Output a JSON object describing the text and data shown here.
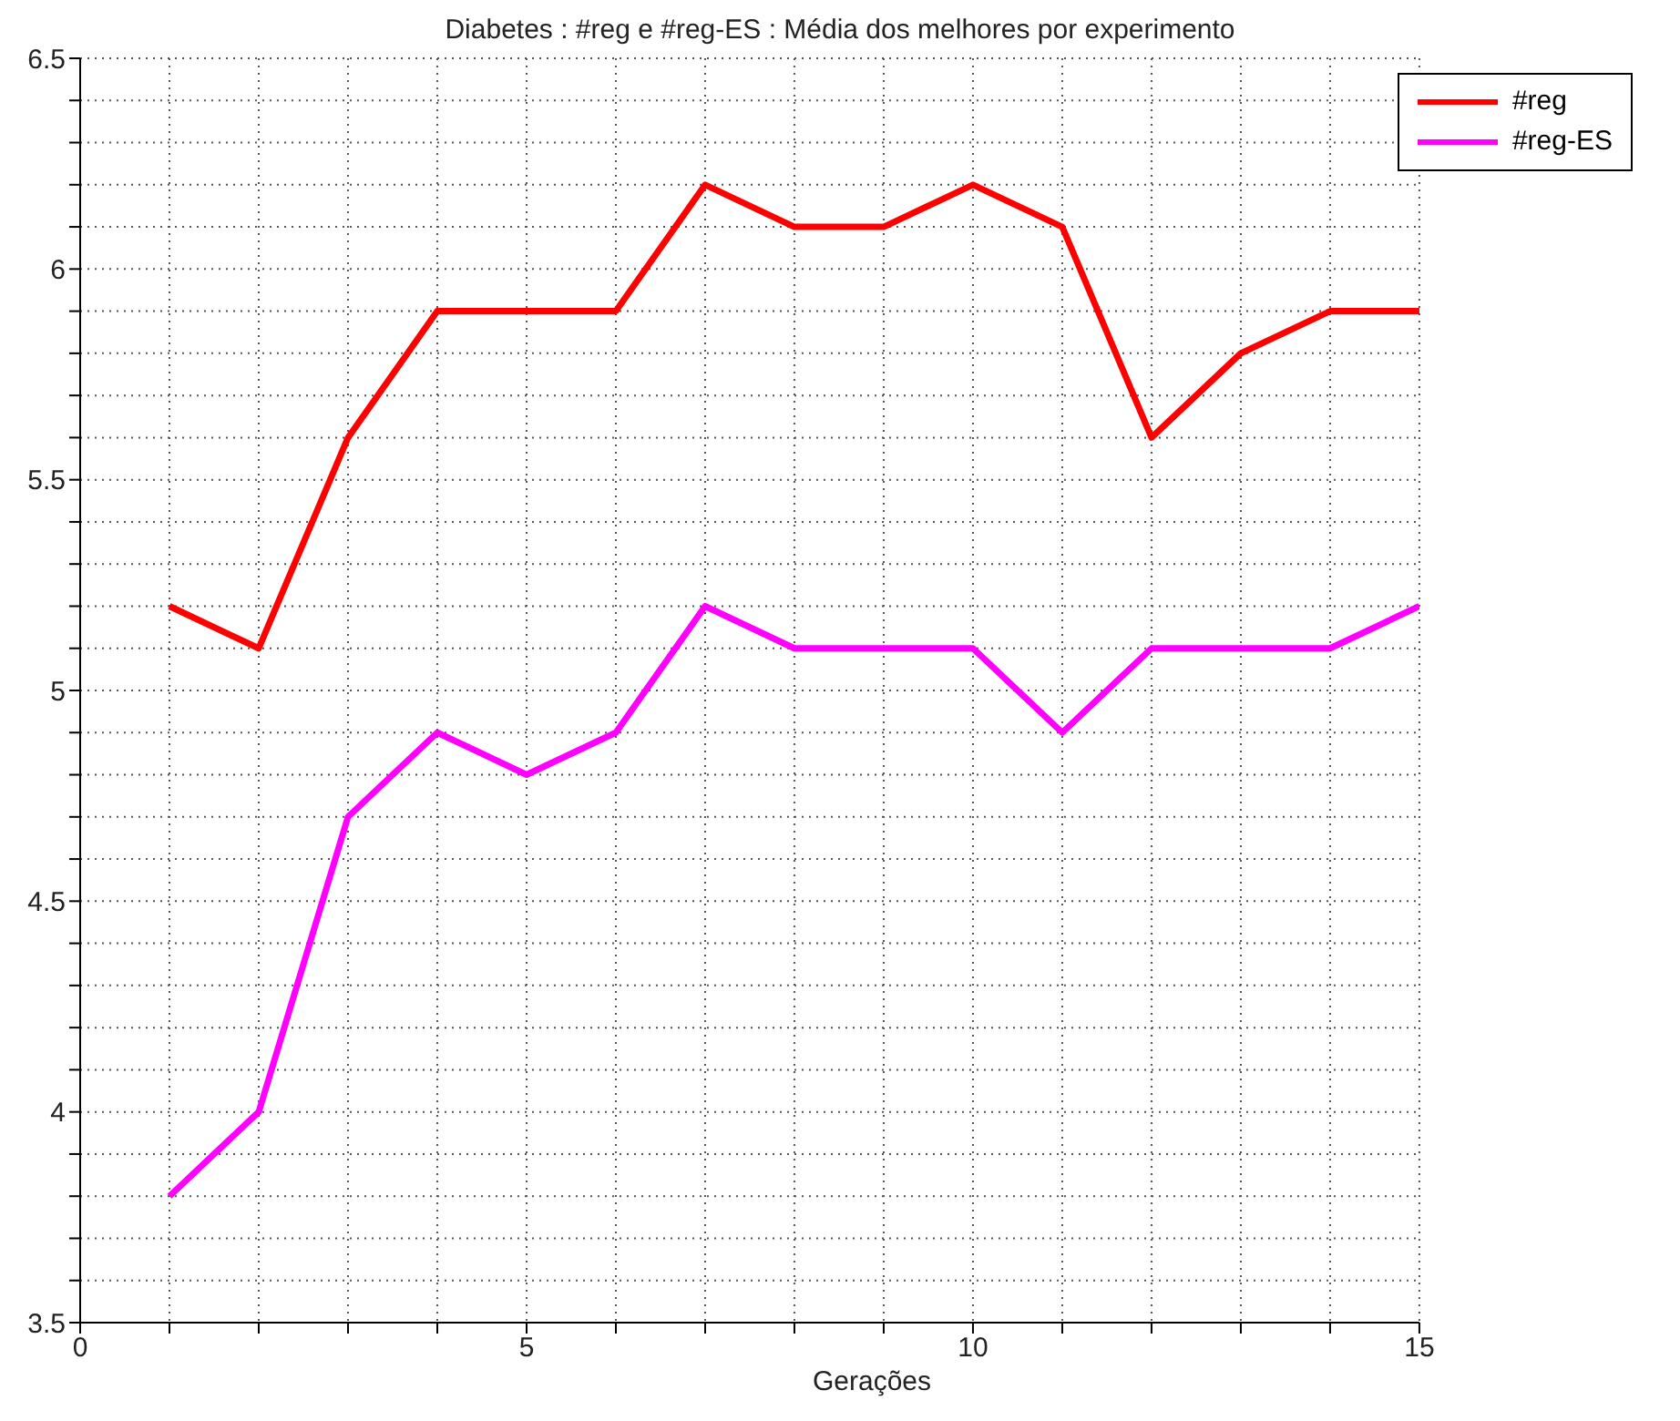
{
  "chart_data": {
    "type": "line",
    "title": "Diabetes : #reg e #reg-ES : Média dos melhores por experimento",
    "xlabel": "Gerações",
    "x": [
      1,
      2,
      3,
      4,
      5,
      6,
      7,
      8,
      9,
      10,
      11,
      12,
      13,
      14,
      15
    ],
    "series": [
      {
        "name": "#reg",
        "color": "#ff0000",
        "values": [
          5.2,
          5.1,
          5.6,
          5.9,
          5.9,
          5.9,
          6.2,
          6.1,
          6.1,
          6.2,
          6.1,
          5.6,
          5.8,
          5.9,
          5.9
        ]
      },
      {
        "name": "#reg-ES",
        "color": "#ff00ff",
        "values": [
          3.8,
          4.0,
          4.7,
          4.9,
          4.8,
          4.9,
          5.2,
          5.1,
          5.1,
          5.1,
          4.9,
          5.1,
          5.1,
          5.1,
          5.2
        ]
      }
    ],
    "xlim": [
      0,
      15
    ],
    "xticks": [
      0,
      {
        "value": 1,
        "label": null
      },
      {
        "value": 2,
        "label": null
      },
      {
        "value": 3,
        "label": null
      },
      {
        "value": 4,
        "label": null
      },
      5,
      {
        "value": 6,
        "label": null
      },
      {
        "value": 7,
        "label": null
      },
      {
        "value": 8,
        "label": null
      },
      {
        "value": 9,
        "label": null
      },
      10,
      {
        "value": 11,
        "label": null
      },
      {
        "value": 12,
        "label": null
      },
      {
        "value": 13,
        "label": null
      },
      {
        "value": 14,
        "label": null
      },
      15
    ],
    "ylim": [
      3.5,
      6.5
    ],
    "yticks": [
      3.5,
      {
        "value": 3.6,
        "label": null
      },
      {
        "value": 3.7,
        "label": null
      },
      {
        "value": 3.8,
        "label": null
      },
      {
        "value": 3.9,
        "label": null
      },
      4,
      {
        "value": 4.1,
        "label": null
      },
      {
        "value": 4.2,
        "label": null
      },
      {
        "value": 4.3,
        "label": null
      },
      {
        "value": 4.4,
        "label": null
      },
      4.5,
      {
        "value": 4.6,
        "label": null
      },
      {
        "value": 4.7,
        "label": null
      },
      {
        "value": 4.8,
        "label": null
      },
      {
        "value": 4.9,
        "label": null
      },
      5,
      {
        "value": 5.1,
        "label": null
      },
      {
        "value": 5.2,
        "label": null
      },
      {
        "value": 5.3,
        "label": null
      },
      {
        "value": 5.4,
        "label": null
      },
      5.5,
      {
        "value": 5.6,
        "label": null
      },
      {
        "value": 5.7,
        "label": null
      },
      {
        "value": 5.8,
        "label": null
      },
      {
        "value": 5.9,
        "label": null
      },
      6,
      {
        "value": 6.1,
        "label": null
      },
      {
        "value": 6.2,
        "label": null
      },
      {
        "value": 6.3,
        "label": null
      },
      {
        "value": 6.4,
        "label": null
      },
      6.5
    ],
    "grid": true,
    "legend": "top right",
    "marker": "none",
    "line_style": "solid"
  }
}
